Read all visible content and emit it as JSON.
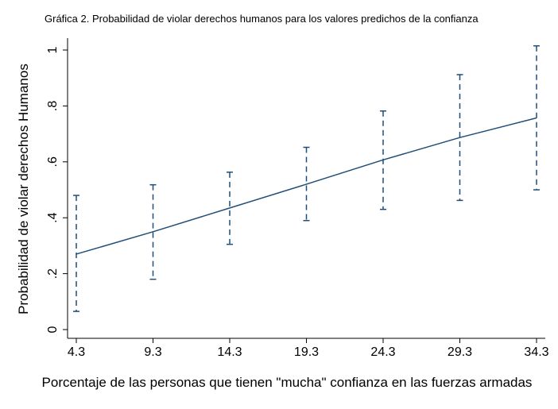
{
  "chart_data": {
    "type": "line",
    "title": "Gráfica 2. Probabilidad de violar derechos humanos para los valores predichos de la confianza",
    "xlabel": "Porcentaje de las personas que tienen \"mucha\" confianza en las fuerzas armadas",
    "ylabel": "Probabilidad de violar derechos Humanos",
    "x": [
      4.3,
      9.3,
      14.3,
      19.3,
      24.3,
      29.3,
      34.3
    ],
    "x_tick_labels": [
      "4.3",
      "9.3",
      "14.3",
      "19.3",
      "24.3",
      "29.3",
      "34.3"
    ],
    "y_ticks": [
      0,
      0.2,
      0.4,
      0.6,
      0.8,
      1
    ],
    "y_tick_labels": [
      "0",
      ".2",
      ".4",
      ".6",
      ".8",
      "1"
    ],
    "xlim": [
      4.3,
      34.3
    ],
    "ylim": [
      0,
      1
    ],
    "series": [
      {
        "values": [
          0.27,
          0.35,
          0.435,
          0.52,
          0.607,
          0.687,
          0.757
        ],
        "ci_lower": [
          0.065,
          0.18,
          0.305,
          0.39,
          0.43,
          0.462,
          0.5
        ],
        "ci_upper": [
          0.48,
          0.518,
          0.563,
          0.652,
          0.782,
          0.912,
          1.015
        ]
      }
    ],
    "colors": {
      "line": "#1f4e79",
      "axis": "#000000"
    },
    "grid": false,
    "legend": "none"
  }
}
